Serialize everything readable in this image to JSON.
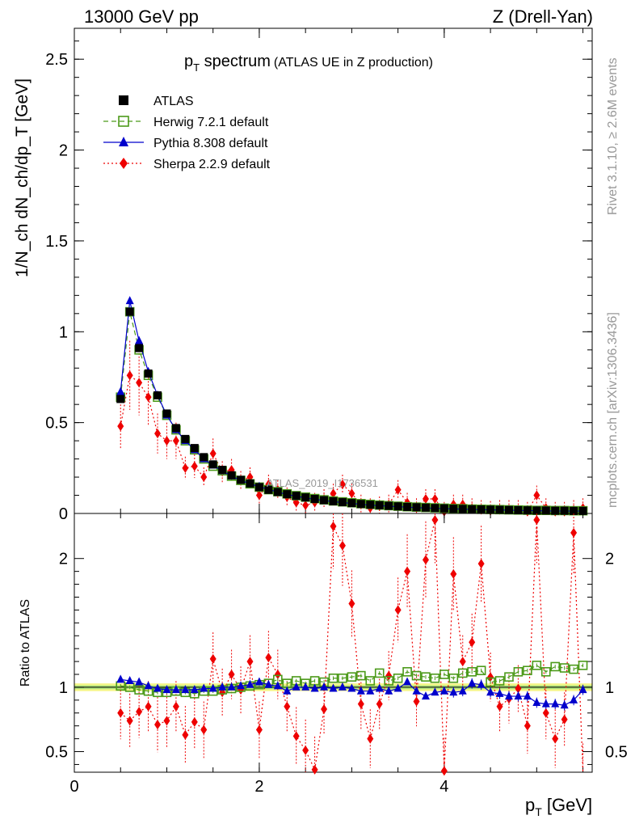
{
  "header": {
    "energy": "13000 GeV pp",
    "process": "Z (Drell-Yan)"
  },
  "side": {
    "rivet": "Rivet 3.1.10, ≥ 2.6M events",
    "mcplots": "mcplots.cern.ch [arXiv:1306.3436]"
  },
  "watermark": "ATLAS_2019_I1736531",
  "chart_data": [
    {
      "type": "scatter",
      "panel": "main",
      "title": "p_T spectrum (ATLAS UE in Z production)",
      "title_main": "p",
      "title_sub": "T",
      "title_rest": " spectrum",
      "title_paren": "(ATLAS UE in Z production)",
      "ylabel": "1/N_ch dN_ch/dp_T [GeV]",
      "xlim": [
        0,
        5.6
      ],
      "ylim": [
        0,
        2.67
      ],
      "yticks": [
        0,
        0.5,
        1,
        1.5,
        2,
        2.5
      ],
      "ytick_labels": [
        "0",
        "0.5",
        "1",
        "1.5",
        "2",
        "2.5"
      ],
      "legend_position": "top-left",
      "x": [
        0.5,
        0.6,
        0.7,
        0.8,
        0.9,
        1.0,
        1.1,
        1.2,
        1.3,
        1.4,
        1.5,
        1.6,
        1.7,
        1.8,
        1.9,
        2.0,
        2.1,
        2.2,
        2.3,
        2.4,
        2.5,
        2.6,
        2.7,
        2.8,
        2.9,
        3.0,
        3.1,
        3.2,
        3.3,
        3.4,
        3.5,
        3.6,
        3.7,
        3.8,
        3.9,
        4.0,
        4.1,
        4.2,
        4.3,
        4.4,
        4.5,
        4.6,
        4.7,
        4.8,
        4.9,
        5.0,
        5.1,
        5.2,
        5.3,
        5.4,
        5.5
      ],
      "series": [
        {
          "name": "ATLAS",
          "color": "#000000",
          "marker": "square-filled",
          "values": [
            0.63,
            1.11,
            0.91,
            0.77,
            0.65,
            0.55,
            0.47,
            0.41,
            0.36,
            0.31,
            0.27,
            0.24,
            0.21,
            0.185,
            0.165,
            0.145,
            0.13,
            0.118,
            0.106,
            0.097,
            0.088,
            0.08,
            0.073,
            0.067,
            0.062,
            0.057,
            0.052,
            0.048,
            0.045,
            0.042,
            0.039,
            0.036,
            0.034,
            0.032,
            0.03,
            0.028,
            0.026,
            0.025,
            0.023,
            0.022,
            0.021,
            0.02,
            0.019,
            0.018,
            0.017,
            0.016,
            0.016,
            0.015,
            0.015,
            0.014,
            0.014
          ]
        },
        {
          "name": "Herwig 7.2.1 default",
          "color": "#4c9a1a",
          "marker": "square-open",
          "dash": "6,4",
          "values": [
            0.64,
            1.11,
            0.9,
            0.76,
            0.64,
            0.54,
            0.46,
            0.4,
            0.35,
            0.3,
            0.26,
            0.235,
            0.205,
            0.182,
            0.163,
            0.145,
            0.131,
            0.12,
            0.108,
            0.098,
            0.09,
            0.082,
            0.075,
            0.069,
            0.064,
            0.059,
            0.054,
            0.05,
            0.046,
            0.043,
            0.04,
            0.037,
            0.035,
            0.033,
            0.031,
            0.029,
            0.027,
            0.026,
            0.024,
            0.023,
            0.022,
            0.021,
            0.02,
            0.019,
            0.018,
            0.017,
            0.017,
            0.016,
            0.016,
            0.015,
            0.015
          ]
        },
        {
          "name": "Pythia 8.308 default",
          "color": "#0000cc",
          "marker": "triangle",
          "values": [
            0.67,
            1.17,
            0.95,
            0.78,
            0.65,
            0.54,
            0.46,
            0.4,
            0.35,
            0.3,
            0.265,
            0.235,
            0.205,
            0.182,
            0.163,
            0.148,
            0.132,
            0.118,
            0.104,
            0.095,
            0.086,
            0.078,
            0.071,
            0.065,
            0.06,
            0.055,
            0.05,
            0.046,
            0.043,
            0.04,
            0.037,
            0.035,
            0.032,
            0.03,
            0.028,
            0.027,
            0.025,
            0.024,
            0.022,
            0.021,
            0.02,
            0.019,
            0.018,
            0.017,
            0.016,
            0.015,
            0.014,
            0.013,
            0.013,
            0.013,
            0.013
          ]
        },
        {
          "name": "Sherpa 2.2.9 default",
          "color": "#ee0000",
          "marker": "diamond",
          "dash": "2,3",
          "values": [
            0.48,
            0.76,
            0.72,
            0.64,
            0.44,
            0.4,
            0.4,
            0.25,
            0.26,
            0.2,
            0.33,
            0.23,
            0.24,
            0.18,
            0.2,
            0.1,
            0.16,
            0.13,
            0.09,
            0.06,
            0.045,
            0.06,
            0.08,
            0.11,
            0.16,
            0.11,
            0.05,
            0.03,
            0.04,
            0.05,
            0.13,
            0.06,
            0.03,
            0.08,
            0.08,
            0.01,
            0.05,
            0.05,
            0.03,
            0.02,
            0.015,
            0.02,
            0.02,
            0.02,
            0.01,
            0.1,
            0.03,
            0.01,
            0.01,
            0.02,
            0.03
          ]
        }
      ]
    },
    {
      "type": "scatter",
      "panel": "ratio",
      "ylabel": "Ratio to ATLAS",
      "xlabel": "p_T [GeV]",
      "xlabel_main": "p",
      "xlabel_sub": "T",
      "xlabel_rest": " [GeV]",
      "xlim": [
        0,
        5.6
      ],
      "xticks": [
        0,
        2,
        4
      ],
      "xtick_labels": [
        "0",
        "2",
        "4"
      ],
      "ylim": [
        0.34,
        2.35
      ],
      "yticks": [
        0.5,
        1,
        2
      ],
      "ytick_labels": [
        "0.5",
        "1",
        "2"
      ],
      "x": [
        0.5,
        0.6,
        0.7,
        0.8,
        0.9,
        1.0,
        1.1,
        1.2,
        1.3,
        1.4,
        1.5,
        1.6,
        1.7,
        1.8,
        1.9,
        2.0,
        2.1,
        2.2,
        2.3,
        2.4,
        2.5,
        2.6,
        2.7,
        2.8,
        2.9,
        3.0,
        3.1,
        3.2,
        3.3,
        3.4,
        3.5,
        3.6,
        3.7,
        3.8,
        3.9,
        4.0,
        4.1,
        4.2,
        4.3,
        4.4,
        4.5,
        4.6,
        4.7,
        4.8,
        4.9,
        5.0,
        5.1,
        5.2,
        5.3,
        5.4,
        5.5
      ],
      "series": [
        {
          "name": "Herwig 7.2.1 default",
          "color": "#4c9a1a",
          "values": [
            1.01,
            1.0,
            0.98,
            0.97,
            0.96,
            0.96,
            0.97,
            0.96,
            0.95,
            0.97,
            0.97,
            0.98,
            0.99,
            1.0,
            1.01,
            1.02,
            1.03,
            1.06,
            1.03,
            1.05,
            1.03,
            1.05,
            1.04,
            1.07,
            1.07,
            1.08,
            1.09,
            1.05,
            1.11,
            1.05,
            1.07,
            1.12,
            1.09,
            1.08,
            1.07,
            1.1,
            1.07,
            1.11,
            1.12,
            1.13,
            1.04,
            1.05,
            1.08,
            1.12,
            1.13,
            1.17,
            1.12,
            1.16,
            1.15,
            1.14,
            1.17
          ]
        },
        {
          "name": "Pythia 8.308 default",
          "color": "#0000cc",
          "values": [
            1.06,
            1.05,
            1.04,
            1.01,
            0.99,
            0.98,
            0.98,
            0.98,
            0.98,
            0.99,
            0.99,
            1.0,
            1.0,
            1.01,
            1.02,
            1.04,
            1.02,
            1.01,
            0.97,
            1.0,
            1.0,
            0.99,
            1.0,
            0.99,
            1.0,
            0.99,
            0.97,
            0.97,
            0.99,
            0.97,
            0.99,
            1.04,
            0.97,
            0.93,
            0.96,
            0.97,
            0.96,
            0.97,
            1.03,
            1.02,
            0.96,
            0.95,
            0.93,
            0.93,
            0.93,
            0.88,
            0.87,
            0.87,
            0.86,
            0.9,
            0.98
          ]
        },
        {
          "name": "Sherpa 2.2.9 default",
          "color": "#ee0000",
          "values": [
            0.8,
            0.74,
            0.81,
            0.85,
            0.71,
            0.74,
            0.85,
            0.63,
            0.73,
            0.67,
            1.22,
            0.96,
            1.1,
            0.98,
            1.2,
            0.67,
            1.23,
            1.1,
            0.85,
            0.62,
            0.51,
            0.36,
            0.83,
            2.25,
            2.1,
            1.65,
            0.87,
            0.6,
            0.87,
            1.09,
            1.6,
            1.9,
            0.89,
            1.99,
            2.3,
            0.35,
            1.88,
            1.2,
            1.35,
            1.96,
            1.08,
            0.85,
            0.91,
            0.99,
            0.7,
            2.3,
            0.8,
            0.6,
            0.75,
            2.2,
            0.3
          ]
        }
      ]
    }
  ]
}
